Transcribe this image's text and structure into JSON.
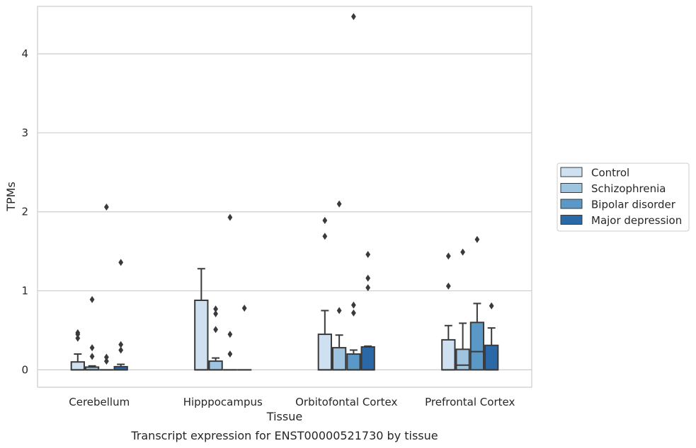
{
  "chart_data": {
    "type": "boxplot",
    "title": "Transcript expression for ENST00000521730 by tissue",
    "xlabel": "Tissue",
    "ylabel": "TPMs",
    "ylim": [
      -0.22,
      4.6
    ],
    "yticks": [
      0,
      1,
      2,
      3,
      4
    ],
    "grid": true,
    "legend_position": "right",
    "categories": [
      "Cerebellum",
      "Hipppocampus",
      "Orbitofontal Cortex",
      "Prefrontal Cortex"
    ],
    "series": [
      {
        "name": "Control",
        "color": "#cfe0f0",
        "boxes": [
          {
            "q1": 0,
            "median": 0,
            "q3": 0.1,
            "whisker_low": 0,
            "whisker_high": 0.2,
            "outliers": [
              0.47,
              0.45,
              0.4
            ]
          },
          {
            "q1": 0,
            "median": 0,
            "q3": 0.88,
            "whisker_low": 0,
            "whisker_high": 1.28,
            "outliers": []
          },
          {
            "q1": 0,
            "median": 0,
            "q3": 0.45,
            "whisker_low": 0,
            "whisker_high": 0.75,
            "outliers": [
              1.89,
              1.69
            ]
          },
          {
            "q1": 0,
            "median": 0,
            "q3": 0.38,
            "whisker_low": 0,
            "whisker_high": 0.56,
            "outliers": [
              1.44,
              1.06
            ]
          }
        ]
      },
      {
        "name": "Schizophrenia",
        "color": "#9ec4e0",
        "boxes": [
          {
            "q1": 0,
            "median": 0,
            "q3": 0.035,
            "whisker_low": 0,
            "whisker_high": 0.05,
            "outliers": [
              0.89,
              0.28,
              0.17
            ]
          },
          {
            "q1": 0,
            "median": 0,
            "q3": 0.11,
            "whisker_low": 0,
            "whisker_high": 0.15,
            "outliers": [
              0.77,
              0.71,
              0.51
            ]
          },
          {
            "q1": 0,
            "median": 0,
            "q3": 0.28,
            "whisker_low": 0,
            "whisker_high": 0.44,
            "outliers": [
              2.1,
              0.75
            ]
          },
          {
            "q1": 0,
            "median": 0.06,
            "q3": 0.26,
            "whisker_low": 0,
            "whisker_high": 0.59,
            "outliers": [
              1.49
            ]
          }
        ]
      },
      {
        "name": "Bipolar disorder",
        "color": "#5a98c7",
        "boxes": [
          {
            "q1": 0,
            "median": 0,
            "q3": 0,
            "whisker_low": 0,
            "whisker_high": 0,
            "outliers": [
              2.06,
              0.16,
              0.11
            ]
          },
          {
            "q1": 0,
            "median": 0,
            "q3": 0,
            "whisker_low": 0,
            "whisker_high": 0,
            "outliers": [
              1.93,
              0.45,
              0.2
            ]
          },
          {
            "q1": 0,
            "median": 0,
            "q3": 0.2,
            "whisker_low": 0,
            "whisker_high": 0.25,
            "outliers": [
              4.47,
              0.82,
              0.72
            ]
          },
          {
            "q1": 0,
            "median": 0.23,
            "q3": 0.6,
            "whisker_low": 0,
            "whisker_high": 0.84,
            "outliers": [
              1.65
            ]
          }
        ]
      },
      {
        "name": "Major depression",
        "color": "#2a68a8",
        "boxes": [
          {
            "q1": 0,
            "median": 0,
            "q3": 0.04,
            "whisker_low": 0,
            "whisker_high": 0.07,
            "outliers": [
              1.36,
              0.32,
              0.25
            ]
          },
          {
            "q1": 0,
            "median": 0,
            "q3": 0,
            "whisker_low": 0,
            "whisker_high": 0,
            "outliers": [
              0.78
            ]
          },
          {
            "q1": 0,
            "median": 0,
            "q3": 0.29,
            "whisker_low": 0,
            "whisker_high": 0.3,
            "outliers": [
              1.46,
              1.16,
              1.04
            ]
          },
          {
            "q1": 0,
            "median": 0,
            "q3": 0.31,
            "whisker_low": 0,
            "whisker_high": 0.53,
            "outliers": [
              0.81
            ]
          }
        ]
      }
    ]
  }
}
